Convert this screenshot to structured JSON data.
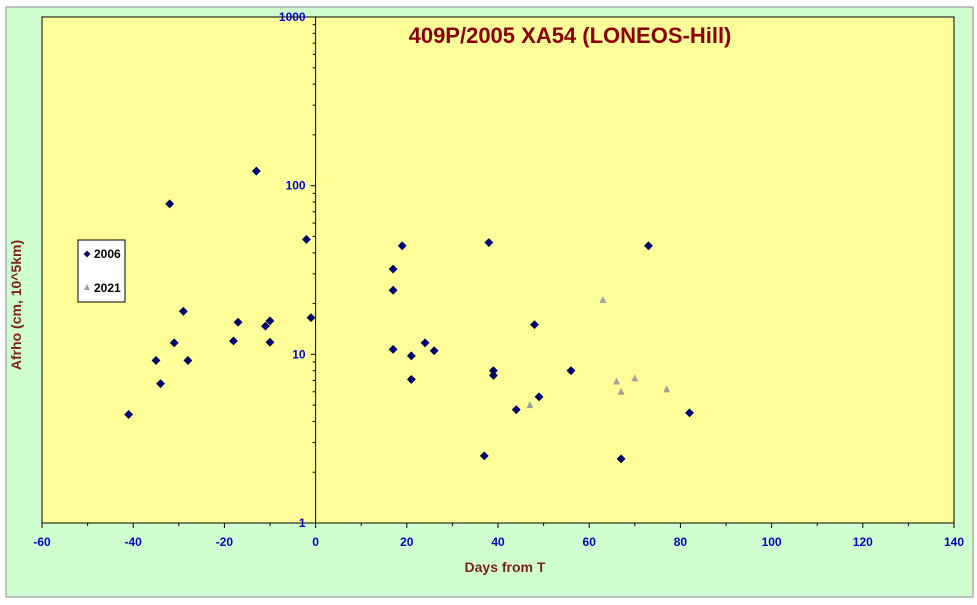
{
  "chart_data": {
    "type": "scatter",
    "title": "409P/2005 XA54 (LONEOS-Hill)",
    "xlabel": "Days from T",
    "ylabel": "Afrho (cm, 10^5km)",
    "xlim": [
      -60,
      140
    ],
    "ylim": [
      1,
      1000
    ],
    "yscale": "log",
    "x_ticks": [
      -60,
      -40,
      -20,
      0,
      20,
      40,
      60,
      80,
      100,
      120,
      140
    ],
    "y_ticks": [
      1,
      10,
      100,
      1000
    ],
    "grid": false,
    "legend_position": "left",
    "colors": {
      "chart_area": "#cfffcf",
      "plot_area": "#ffff99",
      "axis": "#000000",
      "tick_labels": "#0000cc",
      "axis_titles": "#7f1f1f",
      "title": "#8b0000"
    },
    "series": [
      {
        "name": "2006",
        "marker": "diamond",
        "color": "#00007f",
        "points": [
          [
            -41,
            4.4
          ],
          [
            -35,
            9.2
          ],
          [
            -34,
            6.7
          ],
          [
            -32,
            78
          ],
          [
            -31,
            11.7
          ],
          [
            -29,
            18
          ],
          [
            -28,
            9.2
          ],
          [
            -18,
            12
          ],
          [
            -17,
            15.5
          ],
          [
            -13,
            122
          ],
          [
            -11,
            14.7
          ],
          [
            -10,
            15.8
          ],
          [
            -10,
            11.8
          ],
          [
            -2,
            48
          ],
          [
            -1,
            16.5
          ],
          [
            17,
            32
          ],
          [
            17,
            24
          ],
          [
            17,
            10.7
          ],
          [
            19,
            44
          ],
          [
            21,
            9.8
          ],
          [
            21,
            7.1
          ],
          [
            24,
            11.7
          ],
          [
            26,
            10.5
          ],
          [
            37,
            2.5
          ],
          [
            38,
            46
          ],
          [
            39,
            8
          ],
          [
            39,
            7.5
          ],
          [
            44,
            4.7
          ],
          [
            48,
            15
          ],
          [
            49,
            5.6
          ],
          [
            56,
            8
          ],
          [
            67,
            2.4
          ],
          [
            73,
            44
          ],
          [
            82,
            4.5
          ]
        ]
      },
      {
        "name": "2021",
        "marker": "triangle",
        "color": "#a0a0a0",
        "points": [
          [
            47,
            5
          ],
          [
            63,
            21
          ],
          [
            66,
            6.9
          ],
          [
            67,
            6
          ],
          [
            70,
            7.2
          ],
          [
            77,
            6.2
          ]
        ]
      }
    ]
  }
}
